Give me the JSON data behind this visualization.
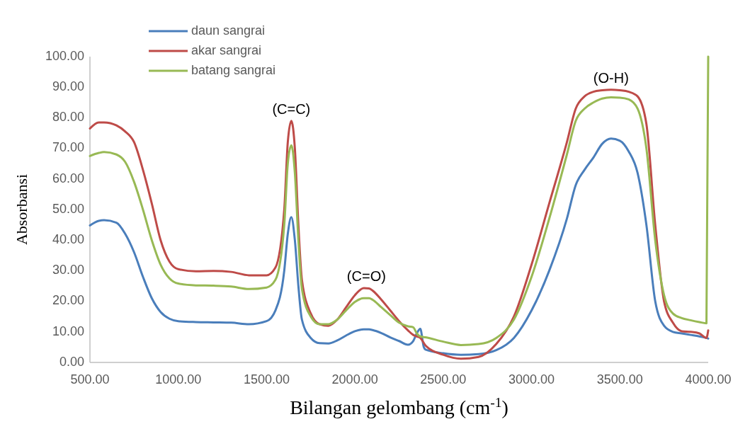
{
  "chart_data": {
    "type": "line",
    "xlabel": "Bilangan gelombang (cm$^{-1}$)",
    "ylabel": "Absorbansi",
    "legend": "top left",
    "marker": "none",
    "line_style": "solid",
    "grid": false,
    "xlim": [
      500,
      4000
    ],
    "ylim": [
      0,
      100
    ],
    "xticks": [
      {
        "value": 500,
        "label": "500.00"
      },
      {
        "value": 1000,
        "label": "1000.00"
      },
      {
        "value": 1500,
        "label": "1500.00"
      },
      {
        "value": 2000,
        "label": "2000.00"
      },
      {
        "value": 2500,
        "label": "2500.00"
      },
      {
        "value": 3000,
        "label": "3000.00"
      },
      {
        "value": 3500,
        "label": "3500.00"
      },
      {
        "value": 4000,
        "label": "4000.00"
      }
    ],
    "yticks": [
      {
        "value": 0,
        "label": "0.00"
      },
      {
        "value": 10,
        "label": "10.00"
      },
      {
        "value": 20,
        "label": "20.00"
      },
      {
        "value": 30,
        "label": "30.00"
      },
      {
        "value": 40,
        "label": "40.00"
      },
      {
        "value": 50,
        "label": "50.00"
      },
      {
        "value": 60,
        "label": "60.00"
      },
      {
        "value": 70,
        "label": "70.00"
      },
      {
        "value": 80,
        "label": "80.00"
      },
      {
        "value": 90,
        "label": "90.00"
      },
      {
        "value": 100,
        "label": "100.00"
      }
    ],
    "annotations": [
      {
        "text": "(C=C)",
        "x": 1640,
        "y": 79
      },
      {
        "text": "(C=O)",
        "x": 2065,
        "y": 24.3
      },
      {
        "text": "(O-H)",
        "x": 3450,
        "y": 89.2
      }
    ],
    "series": [
      {
        "name": "daun sangrai",
        "color": "#4a7ebb",
        "x": [
          500,
          550,
          580,
          650,
          700,
          750,
          800,
          850,
          900,
          950,
          1000,
          1100,
          1200,
          1300,
          1400,
          1500,
          1550,
          1600,
          1620,
          1640,
          1660,
          1680,
          1700,
          1750,
          1800,
          1850,
          1900,
          1950,
          2000,
          2050,
          2080,
          2100,
          2150,
          2200,
          2250,
          2300,
          2330,
          2350,
          2370,
          2390,
          2400,
          2500,
          2600,
          2700,
          2800,
          2900,
          3000,
          3100,
          3200,
          3250,
          3300,
          3350,
          3400,
          3450,
          3500,
          3550,
          3600,
          3650,
          3700,
          3750,
          3800,
          3850,
          3900,
          3950,
          3990,
          4000
        ],
        "values": [
          44.8,
          46.3,
          46.5,
          45.7,
          42,
          36,
          28,
          21,
          16.5,
          14.3,
          13.5,
          13.2,
          13.1,
          13,
          12.5,
          13.5,
          17,
          30,
          42,
          47.5,
          40,
          25,
          14,
          8,
          6.3,
          6.2,
          7.2,
          8.8,
          10.2,
          10.8,
          10.8,
          10.6,
          9.6,
          8.2,
          7,
          5.8,
          7,
          9.5,
          11,
          5,
          4.2,
          3,
          2.5,
          2.7,
          4,
          8,
          17,
          30,
          47,
          58,
          63,
          67,
          71.5,
          73.2,
          72.5,
          69,
          62,
          45,
          20,
          12,
          10,
          9.5,
          9,
          8.5,
          8,
          7.8
        ]
      },
      {
        "name": "akar sangrai",
        "color": "#be4b48",
        "x": [
          500,
          550,
          580,
          650,
          700,
          750,
          800,
          850,
          900,
          950,
          1000,
          1100,
          1200,
          1300,
          1400,
          1500,
          1550,
          1600,
          1620,
          1640,
          1660,
          1680,
          1700,
          1750,
          1800,
          1850,
          1900,
          1950,
          2000,
          2050,
          2080,
          2100,
          2150,
          2200,
          2250,
          2300,
          2330,
          2350,
          2370,
          2400,
          2500,
          2600,
          2700,
          2800,
          2900,
          3000,
          3100,
          3200,
          3250,
          3300,
          3350,
          3400,
          3450,
          3500,
          3550,
          3600,
          3650,
          3700,
          3750,
          3800,
          3850,
          3900,
          3950,
          3990,
          4000
        ],
        "values": [
          76.5,
          78.5,
          78.5,
          77.5,
          75.5,
          72,
          63,
          52,
          40,
          33,
          30.5,
          29.8,
          29.9,
          29.6,
          28.5,
          28.5,
          31,
          50,
          72,
          79,
          70,
          45,
          27,
          16,
          12.5,
          12,
          14,
          18,
          22,
          24.3,
          24.2,
          23.5,
          20.5,
          17,
          13.5,
          10.5,
          9,
          8.5,
          8,
          5.5,
          2.5,
          1.2,
          1.8,
          6,
          15,
          32,
          52,
          72,
          83,
          87,
          88.5,
          89,
          89.2,
          89,
          88.5,
          87,
          78,
          45,
          20,
          13,
          10.2,
          10,
          9.5,
          8,
          10.5
        ]
      },
      {
        "name": "batang sangrai",
        "color": "#98b954",
        "x": [
          500,
          550,
          580,
          650,
          700,
          750,
          800,
          850,
          900,
          950,
          1000,
          1100,
          1200,
          1300,
          1400,
          1500,
          1550,
          1600,
          1620,
          1640,
          1660,
          1680,
          1700,
          1750,
          1800,
          1850,
          1900,
          1950,
          2000,
          2050,
          2080,
          2100,
          2150,
          2200,
          2250,
          2300,
          2330,
          2350,
          2370,
          2400,
          2500,
          2600,
          2700,
          2800,
          2900,
          3000,
          3100,
          3200,
          3250,
          3300,
          3350,
          3400,
          3450,
          3500,
          3550,
          3600,
          3650,
          3700,
          3750,
          3800,
          3850,
          3900,
          3950,
          3990,
          4000
        ],
        "values": [
          67.5,
          68.5,
          68.8,
          68,
          65.5,
          59,
          50,
          40,
          32,
          27.5,
          25.8,
          25.2,
          25.1,
          24.8,
          24,
          24.5,
          27,
          45,
          65,
          71,
          62,
          40,
          24,
          15,
          12.5,
          12.5,
          14,
          17,
          19.8,
          21,
          21,
          20.5,
          18,
          15.5,
          13,
          11.8,
          11.5,
          9.5,
          8.5,
          8.2,
          6.8,
          5.7,
          6,
          8,
          14,
          28,
          47,
          68,
          79,
          83,
          85,
          86.3,
          86.7,
          86.6,
          86,
          83,
          70,
          40,
          22,
          16,
          14.5,
          13.8,
          13.2,
          12.8,
          100
        ]
      }
    ]
  }
}
